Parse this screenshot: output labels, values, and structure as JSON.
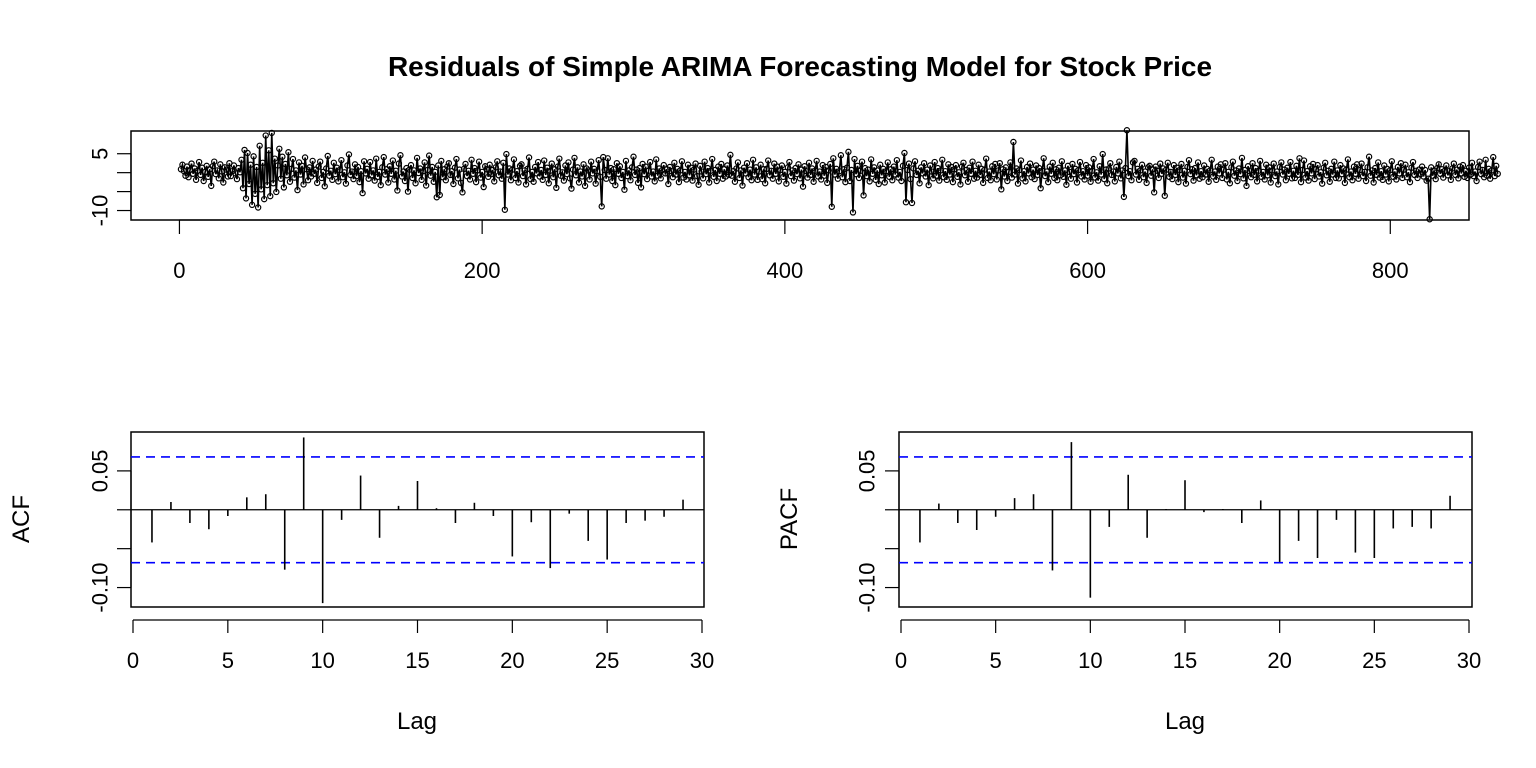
{
  "title": "Residuals of Simple ARIMA Forecasting Model for Stock Price",
  "chart_data": [
    {
      "type": "line",
      "panel": "residuals",
      "title": "Residuals of Simple ARIMA Forecasting Model for Stock Price",
      "xlabel": "",
      "ylabel": "",
      "xlim": [
        -32,
        852
      ],
      "ylim": [
        -12.5,
        11
      ],
      "x_ticks": [
        0,
        200,
        400,
        600,
        800
      ],
      "y_ticks": [
        -10,
        -5,
        0,
        5
      ],
      "y_tick_labels": [
        {
          "value": -10,
          "label": "-10"
        },
        {
          "value": 5,
          "label": "5"
        }
      ],
      "n": 822,
      "markers": "open-circle",
      "series": [
        {
          "values": [
            0.9,
            2.1,
            0.4,
            -0.8,
            1.6,
            -1.2,
            0.7,
            2.4,
            -0.3,
            1.1,
            -1.9,
            0.5,
            2.8,
            -0.6,
            1.3,
            -2.2,
            0.2,
            1.8,
            -1.1,
            0.9,
            -3.5,
            1.7,
            2.9,
            -0.4,
            0.6,
            -1.5,
            2.2,
            0.3,
            -2.6,
            1.4,
            0.8,
            -1.0,
            2.5,
            -0.9,
            0.4,
            1.9,
            -0.2,
            -1.7,
            1.2,
            0.1,
            3.4,
            -4.1,
            6.0,
            -6.8,
            5.2,
            -3.0,
            2.1,
            -8.5,
            4.3,
            -5.6,
            1.5,
            -9.2,
            7.1,
            -4.4,
            2.6,
            -7.0,
            9.8,
            -3.3,
            5.9,
            -6.2,
            10.5,
            -2.8,
            3.7,
            -5.1,
            1.9,
            6.3,
            -1.6,
            4.2,
            -3.9,
            2.3,
            -0.7,
            5.4,
            -2.4,
            1.0,
            3.6,
            -1.3,
            0.6,
            -4.6,
            2.7,
            -0.5,
            1.8,
            -3.1,
            4.0,
            0.9,
            -2.0,
            1.4,
            -1.0,
            3.1,
            -0.3,
            0.8,
            -2.7,
            1.6,
            2.9,
            -1.4,
            0.2,
            -3.6,
            1.1,
            4.4,
            -0.8,
            0.5,
            -1.9,
            2.6,
            -0.4,
            1.3,
            -2.3,
            0.7,
            3.3,
            -1.2,
            0.1,
            -2.9,
            1.9,
            4.8,
            -0.6,
            0.3,
            -1.7,
            2.2,
            -0.9,
            1.5,
            -2.5,
            0.4,
            -5.4,
            3.0,
            -0.2,
            1.0,
            -1.6,
            2.8,
            -0.7,
            0.6,
            -2.1,
            3.7,
            -1.1,
            0.2,
            -3.3,
            1.4,
            4.1,
            -0.5,
            0.9,
            -2.6,
            1.7,
            -0.3,
            3.2,
            -1.8,
            0.5,
            -4.7,
            2.4,
            4.6,
            -1.0,
            0.3,
            -2.2,
            1.2,
            -5.0,
            0.8,
            2.0,
            -1.4,
            0.6,
            -2.8,
            3.9,
            -0.1,
            1.1,
            -1.9,
            0.4,
            2.7,
            -3.4,
            0.7,
            4.5,
            -0.8,
            1.5,
            -2.4,
            0.2,
            -6.5,
            1.9,
            -5.9,
            3.1,
            -1.2,
            0.9,
            -2.0,
            1.6,
            2.5,
            -0.6,
            0.4,
            -3.0,
            1.3,
            3.6,
            -1.5,
            0.8,
            -2.7,
            -5.2,
            1.0,
            2.3,
            -0.9,
            0.5,
            -1.8,
            3.4,
            -0.3,
            1.2,
            -2.5,
            0.6,
            2.9,
            -1.3,
            0.2,
            -3.8,
            1.7,
            0.9,
            -1.1,
            2.1,
            -0.4,
            0.7,
            -2.3,
            1.4,
            3.0,
            -0.7,
            0.3,
            -1.6,
            2.6,
            -9.8,
            4.9,
            -0.5,
            1.1,
            -2.0,
            0.8,
            3.5,
            -1.4,
            0.4,
            -2.6,
            1.8,
            2.2,
            -0.9,
            0.6,
            -3.1,
            1.0,
            4.0,
            -1.7,
            0.2,
            -2.4,
            1.5,
            -0.2,
            2.8,
            -1.0,
            0.7,
            -1.9,
            3.2,
            -0.6,
            1.3,
            -2.8,
            0.5,
            2.4,
            -1.2,
            0.9,
            -4.0,
            1.6,
            3.7,
            -0.8,
            0.1,
            -2.1,
            1.9,
            -0.4,
            2.7,
            -1.5,
            -4.2,
            0.8,
            3.9,
            -0.7,
            1.4,
            -2.6,
            0.3,
            -1.0,
            2.2,
            -3.5,
            1.1,
            0.6,
            -1.8,
            2.9,
            -0.2,
            1.0,
            -2.9,
            0.4,
            3.3,
            -1.1,
            -8.9,
            4.1,
            0.7,
            -1.6,
            3.8,
            -0.5,
            1.2,
            -2.2,
            0.9,
            -3.3,
            2.5,
            -0.3,
            1.7,
            -1.4,
            0.2,
            -4.5,
            3.1,
            -0.9,
            0.6,
            -2.0,
            1.4,
            4.2,
            -0.6,
            0.8,
            -2.7,
            1.2,
            -3.9,
            2.3,
            -0.4,
            1.6,
            -1.7,
            0.5,
            2.8,
            -1.0,
            0.3,
            -2.3,
            3.5,
            -0.8,
            1.1,
            -1.5,
            0.7,
            2.0,
            -0.2,
            0.9,
            -3.0,
            1.5,
            0.4,
            -1.2,
            2.6,
            -0.5,
            1.0,
            -2.5,
            0.6,
            3.0,
            -1.3,
            0.2,
            -1.8,
            2.1,
            -0.7,
            1.3,
            -2.1,
            0.8,
            2.4,
            -0.9,
            -3.2,
            1.8,
            0.3,
            -1.5,
            2.9,
            -0.4,
            1.2,
            -2.6,
            0.5,
            3.6,
            -1.1,
            0.7,
            -2.2,
            1.6,
            -0.3,
            2.3,
            -1.6,
            0.9,
            -1.0,
            1.9,
            -0.6,
            4.7,
            -0.8,
            0.4,
            -2.4,
            1.1,
            2.7,
            -1.4,
            0.6,
            -3.4,
            1.3,
            -0.2,
            2.5,
            -1.2,
            0.8,
            -2.0,
            3.4,
            -0.5,
            1.4,
            -1.9,
            0.3,
            2.1,
            -1.7,
            0.9,
            -2.8,
            1.0,
            3.2,
            -0.7,
            0.5,
            -1.6,
            2.4,
            -0.3,
            1.6,
            -2.3,
            0.7,
            1.9,
            -1.1,
            0.2,
            -2.9,
            1.4,
            2.8,
            -0.9,
            0.6,
            -2.1,
            1.2,
            -0.4,
            2.2,
            -1.5,
            0.8,
            -3.7,
            1.7,
            0.4,
            -1.3,
            2.6,
            -0.6,
            1.1,
            -2.4,
            0.5,
            3.1,
            -1.0,
            0.3,
            -1.8,
            2.0,
            -0.8,
            1.5,
            -2.7,
            0.6,
            2.3,
            -9.0,
            3.8,
            -0.5,
            1.0,
            -1.6,
            0.4,
            4.6,
            -1.2,
            0.9,
            -2.5,
            1.3,
            5.5,
            -2.2,
            0.7,
            -10.5,
            3.6,
            -0.4,
            1.8,
            -1.4,
            0.5,
            2.9,
            -6.0,
            1.2,
            -0.9,
            0.8,
            -2.3,
            3.5,
            -0.3,
            1.4,
            -1.9,
            0.6,
            -3.0,
            2.1,
            -0.7,
            1.0,
            -2.6,
            0.4,
            2.7,
            -1.1,
            0.9,
            -2.0,
            1.6,
            -0.5,
            3.3,
            -1.3,
            0.2,
            -2.2,
            1.8,
            5.2,
            -7.8,
            0.7,
            2.4,
            -1.7,
            -8.0,
            1.1,
            3.0,
            -0.6,
            0.5,
            -2.8,
            1.4,
            -0.2,
            2.5,
            -1.0,
            0.8,
            -3.3,
            1.9,
            0.3,
            -1.5,
            2.8,
            -0.8,
            1.2,
            -2.1,
            0.6,
            3.4,
            -1.2,
            0.4,
            -1.9,
            2.2,
            -0.5,
            1.5,
            -2.5,
            0.9,
            2.0,
            -1.1,
            0.1,
            -3.1,
            1.6,
            2.6,
            -0.7,
            0.7,
            -2.4,
            1.3,
            -0.3,
            2.9,
            -1.6,
            0.5,
            -1.3,
            2.1,
            -0.6,
            1.0,
            -2.7,
            0.8,
            3.7,
            -1.4,
            0.3,
            -2.0,
            1.7,
            -0.4,
            2.3,
            -1.8,
            0.6,
            2.5,
            -4.4,
            0.9,
            -1.0,
            1.4,
            -2.2,
            0.2,
            2.7,
            -1.3,
            8.1,
            -0.5,
            1.1,
            -2.9,
            0.7,
            3.2,
            -1.5,
            0.4,
            -2.3,
            1.5,
            -0.2,
            2.4,
            -1.2,
            0.8,
            -1.7,
            1.9,
            -0.6,
            1.2,
            -4.1,
            0.5,
            3.8,
            -0.9,
            0.3,
            -2.5,
            1.6,
            -0.3,
            2.6,
            -1.4,
            0.9,
            -2.0,
            1.3,
            -0.7,
            3.0,
            -1.1,
            0.6,
            -3.2,
            1.8,
            0.2,
            -1.6,
            2.3,
            -0.4,
            1.0,
            -2.6,
            0.7,
            2.8,
            -1.0,
            0.4,
            -1.8,
            2.0,
            -0.8,
            1.4,
            -2.4,
            0.5,
            3.6,
            -1.3,
            0.1,
            -2.1,
            1.7,
            -0.5,
            4.9,
            -1.7,
            0.8,
            -2.8,
            1.1,
            2.5,
            -0.6,
            0.3,
            -2.3,
            1.5,
            -0.2,
            2.9,
            -1.5,
            0.6,
            -6.4,
            1.2,
            11.2,
            -0.9,
            0.4,
            -2.0,
            2.7,
            3.1,
            -0.5,
            1.0,
            -1.9,
            0.6,
            2.1,
            -1.2,
            0.3,
            -2.7,
            1.4,
            1.8,
            -0.8,
            0.9,
            -5.2,
            1.6,
            0.5,
            -1.4,
            2.4,
            -0.3,
            1.1,
            -6.1,
            0.8,
            2.6,
            -1.1,
            0.2,
            -1.7,
            2.0,
            -0.6,
            1.3,
            -2.5,
            0.7,
            2.3,
            -1.3,
            0.5,
            -2.9,
            1.5,
            3.3,
            -0.4,
            0.9,
            -2.1,
            1.2,
            -0.7,
            2.7,
            -1.6,
            0.4,
            -1.2,
            1.9,
            -0.5,
            1.0,
            -2.4,
            0.6,
            3.4,
            -1.0,
            0.3,
            -1.9,
            1.6,
            -0.2,
            2.2,
            -1.4,
            0.8,
            2.5,
            -1.8,
            0.2,
            -2.8,
            1.4,
            2.9,
            -0.8,
            0.6,
            -2.2,
            1.1,
            -0.4,
            3.9,
            -1.5,
            0.7,
            -3.5,
            1.7,
            0.4,
            -1.2,
            2.5,
            -0.6,
            1.2,
            -2.3,
            0.5,
            3.1,
            -1.1,
            0.2,
            -1.8,
            2.1,
            -0.7,
            1.4,
            -2.6,
            0.6,
            2.4,
            -0.9,
            0.3,
            -3.1,
            1.5,
            2.7,
            -0.5,
            0.8,
            -2.0,
            1.3,
            -0.3,
            2.8,
            -1.5,
            0.5,
            -1.4,
            1.8,
            -0.6,
            3.8,
            -2.5,
            0.7,
            3.2,
            -1.3,
            0.4,
            -2.1,
            1.7,
            -0.2,
            2.3,
            -1.7,
            0.9,
            2.0,
            -1.0,
            0.1,
            -2.9,
            1.3,
            2.6,
            -0.7,
            0.5,
            -2.4,
            1.0,
            -0.5,
            2.9,
            -1.4,
            0.6,
            -1.5,
            2.0,
            -0.4,
            1.1,
            -2.7,
            0.8,
            3.5,
            -1.2,
            0.3,
            -2.0,
            1.6,
            -0.3,
            2.2,
            -1.6,
            0.7,
            2.4,
            -0.9,
            0.2,
            -2.2,
            1.4,
            4.2,
            -0.8,
            0.6,
            -2.6,
            1.2,
            -0.6,
            2.7,
            -1.3,
            0.4,
            -1.9,
            1.9,
            -0.5,
            1.0,
            -2.3,
            0.7,
            3.0,
            -1.1,
            0.3,
            -1.8,
            1.5,
            -0.2,
            2.5,
            -1.4,
            0.8,
            2.1,
            -1.2,
            0.1,
            -2.5,
            1.3,
            2.8,
            -0.6,
            0.5,
            -1.4,
            0.8,
            -0.4,
            1.6,
            -1.0,
            0.7,
            -2.1,
            -1.6,
            -12.3,
            1.4,
            -0.8,
            0.6,
            -1.7,
            1.2,
            2.2,
            -0.3,
            0.9,
            -1.3,
            0.5,
            1.9,
            -0.7,
            0.4,
            -1.9,
            1.1,
            2.4,
            -0.6,
            0.8,
            -1.5,
            1.6,
            -0.2,
            2.0,
            -1.1,
            0.5,
            -1.4,
            1.3,
            -0.5,
            2.6,
            -0.9,
            0.3,
            -2.2,
            1.5,
            2.9,
            -0.4,
            0.7,
            -1.2,
            3.4,
            -0.8,
            1.0,
            -1.6,
            0.6,
            4.1,
            -0.9,
            1.8,
            -0.3
          ]
        }
      ]
    },
    {
      "type": "bar",
      "panel": "acf",
      "xlabel": "Lag",
      "ylabel": "ACF",
      "xlim": [
        0,
        30
      ],
      "ylim": [
        -0.125,
        0.1
      ],
      "x_ticks": [
        0,
        5,
        10,
        15,
        20,
        25,
        30
      ],
      "y_ticks": [
        -0.1,
        -0.05,
        0,
        0.05
      ],
      "y_tick_labels": [
        {
          "value": -0.1,
          "label": "-0.10"
        },
        {
          "value": 0.05,
          "label": "0.05"
        }
      ],
      "confidence_bound": 0.068,
      "confidence_color": "#0000ff",
      "lags": [
        1,
        2,
        3,
        4,
        5,
        6,
        7,
        8,
        9,
        10,
        11,
        12,
        13,
        14,
        15,
        16,
        17,
        18,
        19,
        20,
        21,
        22,
        23,
        24,
        25,
        26,
        27,
        28,
        29
      ],
      "values": [
        -0.042,
        0.01,
        -0.017,
        -0.025,
        -0.008,
        0.016,
        0.02,
        -0.077,
        0.093,
        -0.12,
        -0.013,
        0.044,
        -0.036,
        0.005,
        0.037,
        0.002,
        -0.017,
        0.009,
        -0.008,
        -0.06,
        -0.016,
        -0.075,
        -0.005,
        -0.04,
        -0.064,
        -0.017,
        -0.014,
        -0.009,
        0.013
      ]
    },
    {
      "type": "bar",
      "panel": "pacf",
      "xlabel": "Lag",
      "ylabel": "PACF",
      "xlim": [
        0,
        30
      ],
      "ylim": [
        -0.125,
        0.1
      ],
      "x_ticks": [
        0,
        5,
        10,
        15,
        20,
        25,
        30
      ],
      "y_ticks": [
        -0.1,
        -0.05,
        0,
        0.05
      ],
      "y_tick_labels": [
        {
          "value": -0.1,
          "label": "-0.10"
        },
        {
          "value": 0.05,
          "label": "0.05"
        }
      ],
      "confidence_bound": 0.068,
      "confidence_color": "#0000ff",
      "lags": [
        1,
        2,
        3,
        4,
        5,
        6,
        7,
        8,
        9,
        10,
        11,
        12,
        13,
        14,
        15,
        16,
        17,
        18,
        19,
        20,
        21,
        22,
        23,
        24,
        25,
        26,
        27,
        28,
        29
      ],
      "values": [
        -0.042,
        0.008,
        -0.017,
        -0.026,
        -0.009,
        0.015,
        0.02,
        -0.078,
        0.087,
        -0.113,
        -0.022,
        0.045,
        -0.036,
        0.001,
        0.038,
        -0.003,
        0.001,
        -0.017,
        0.012,
        -0.067,
        -0.04,
        -0.062,
        -0.013,
        -0.055,
        -0.062,
        -0.024,
        -0.022,
        -0.024,
        0.018
      ]
    }
  ]
}
